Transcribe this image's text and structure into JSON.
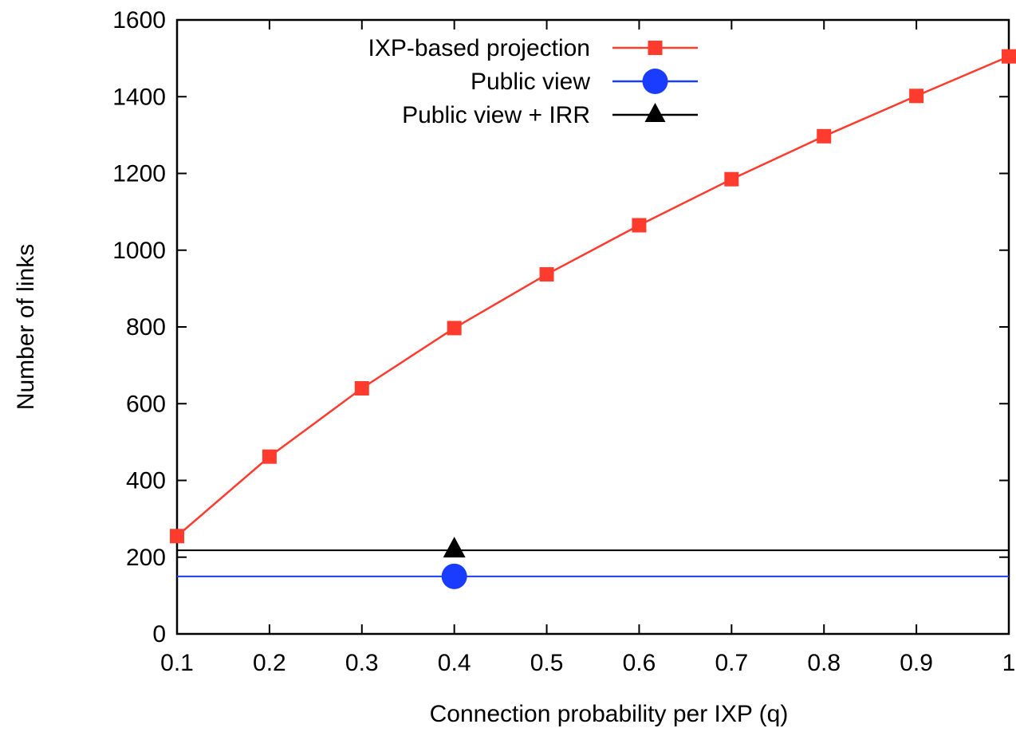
{
  "page_title_fragment": "",
  "chart_data": {
    "type": "line",
    "title": "",
    "xlabel": "Connection probability per IXP (q)",
    "ylabel": "Number of links",
    "xlim": [
      0.1,
      1
    ],
    "ylim": [
      0,
      1600
    ],
    "x_ticks": [
      "0.1",
      "0.2",
      "0.3",
      "0.4",
      "0.5",
      "0.6",
      "0.7",
      "0.8",
      "0.9",
      "1"
    ],
    "y_ticks": [
      "0",
      "200",
      "400",
      "600",
      "800",
      "1000",
      "1200",
      "1400",
      "1600"
    ],
    "grid": false,
    "legend_position": "top",
    "series": [
      {
        "name": "IXP-based projection",
        "color": "#ff3b2e",
        "marker": "square",
        "x": [
          0.1,
          0.2,
          0.3,
          0.4,
          0.5,
          0.6,
          0.7,
          0.8,
          0.9,
          1.0
        ],
        "y": [
          255,
          462,
          640,
          797,
          937,
          1065,
          1185,
          1297,
          1402,
          1505
        ]
      },
      {
        "name": "Public view",
        "color": "#1a3cff",
        "marker": "circle",
        "line": "horizontal",
        "value": 150,
        "marker_x": 0.4
      },
      {
        "name": "Public view + IRR",
        "color": "#000000",
        "marker": "triangle",
        "line": "horizontal",
        "value": 218,
        "marker_x": 0.4
      }
    ]
  }
}
